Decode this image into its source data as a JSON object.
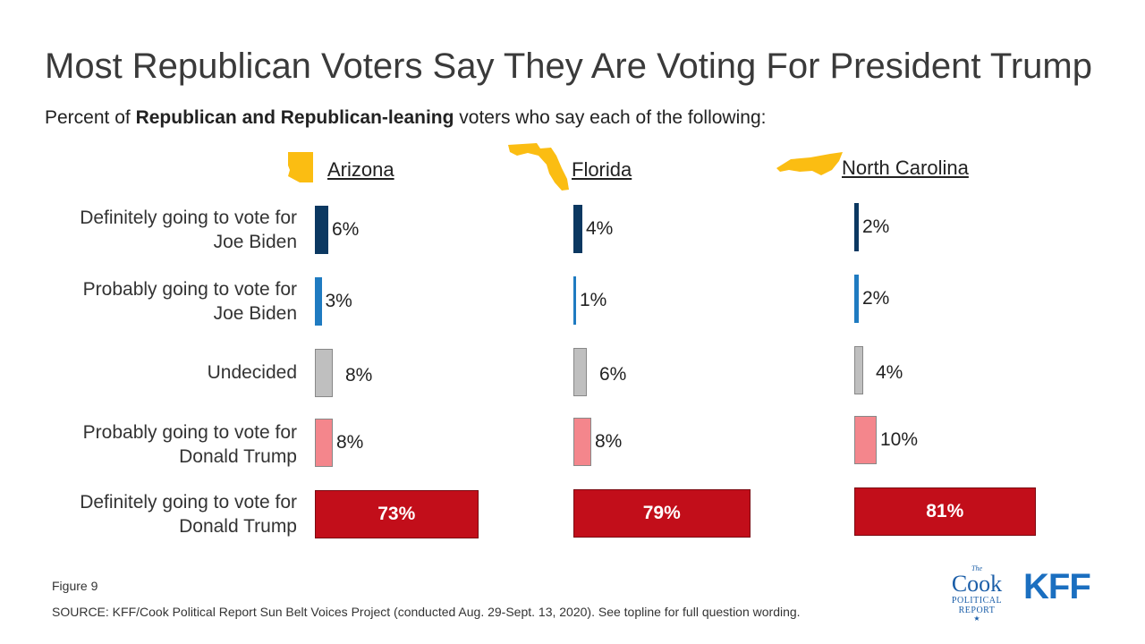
{
  "title": "Most Republican Voters Say They Are Voting For President Trump",
  "subtitle": {
    "prefix": "Percent of ",
    "bold": "Republican and Republican-leaning",
    "suffix": " voters who say each of the following:"
  },
  "row_labels": [
    [
      "Definitely going to vote for",
      "Joe Biden"
    ],
    [
      "Probably going to vote for",
      "Joe Biden"
    ],
    [
      "Undecided"
    ],
    [
      "Probably going to vote for",
      "Donald Trump"
    ],
    [
      "Definitely going to vote for",
      "Donald Trump"
    ]
  ],
  "colors": {
    "definitely_biden": "#0b3861",
    "probably_biden": "#1f7bc1",
    "undecided": "#bfbfbf",
    "probably_trump": "#f4868c",
    "definitely_trump": "#c20e1a",
    "state_icon": "#fbbd12"
  },
  "chart_data": {
    "type": "bar",
    "orientation": "horizontal",
    "categories": [
      "Definitely going to vote for Joe Biden",
      "Probably going to vote for Joe Biden",
      "Undecided",
      "Probably going to vote for Donald Trump",
      "Definitely going to vote for Donald Trump"
    ],
    "panels": [
      {
        "state": "Arizona",
        "icon": "arizona-state-icon",
        "values": [
          6,
          3,
          8,
          8,
          73
        ],
        "labels": [
          "6%",
          "3%",
          "8%",
          "8%",
          "73%"
        ]
      },
      {
        "state": "Florida",
        "icon": "florida-state-icon",
        "values": [
          4,
          1,
          6,
          8,
          79
        ],
        "labels": [
          "4%",
          "1%",
          "6%",
          "8%",
          "79%"
        ]
      },
      {
        "state": "North Carolina",
        "icon": "north-carolina-state-icon",
        "values": [
          2,
          2,
          4,
          10,
          81
        ],
        "labels": [
          "2%",
          "2%",
          "4%",
          "10%",
          "81%"
        ]
      }
    ]
  },
  "footer": {
    "figure": "Figure 9",
    "source": "SOURCE: KFF/Cook Political Report Sun Belt Voices Project (conducted Aug. 29-Sept. 13, 2020). See topline for full question wording."
  },
  "logos": {
    "cook": {
      "the": "The",
      "name": "Cook",
      "line1": "POLITICAL",
      "line2": "REPORT",
      "star": "★"
    },
    "kff": "KFF"
  }
}
